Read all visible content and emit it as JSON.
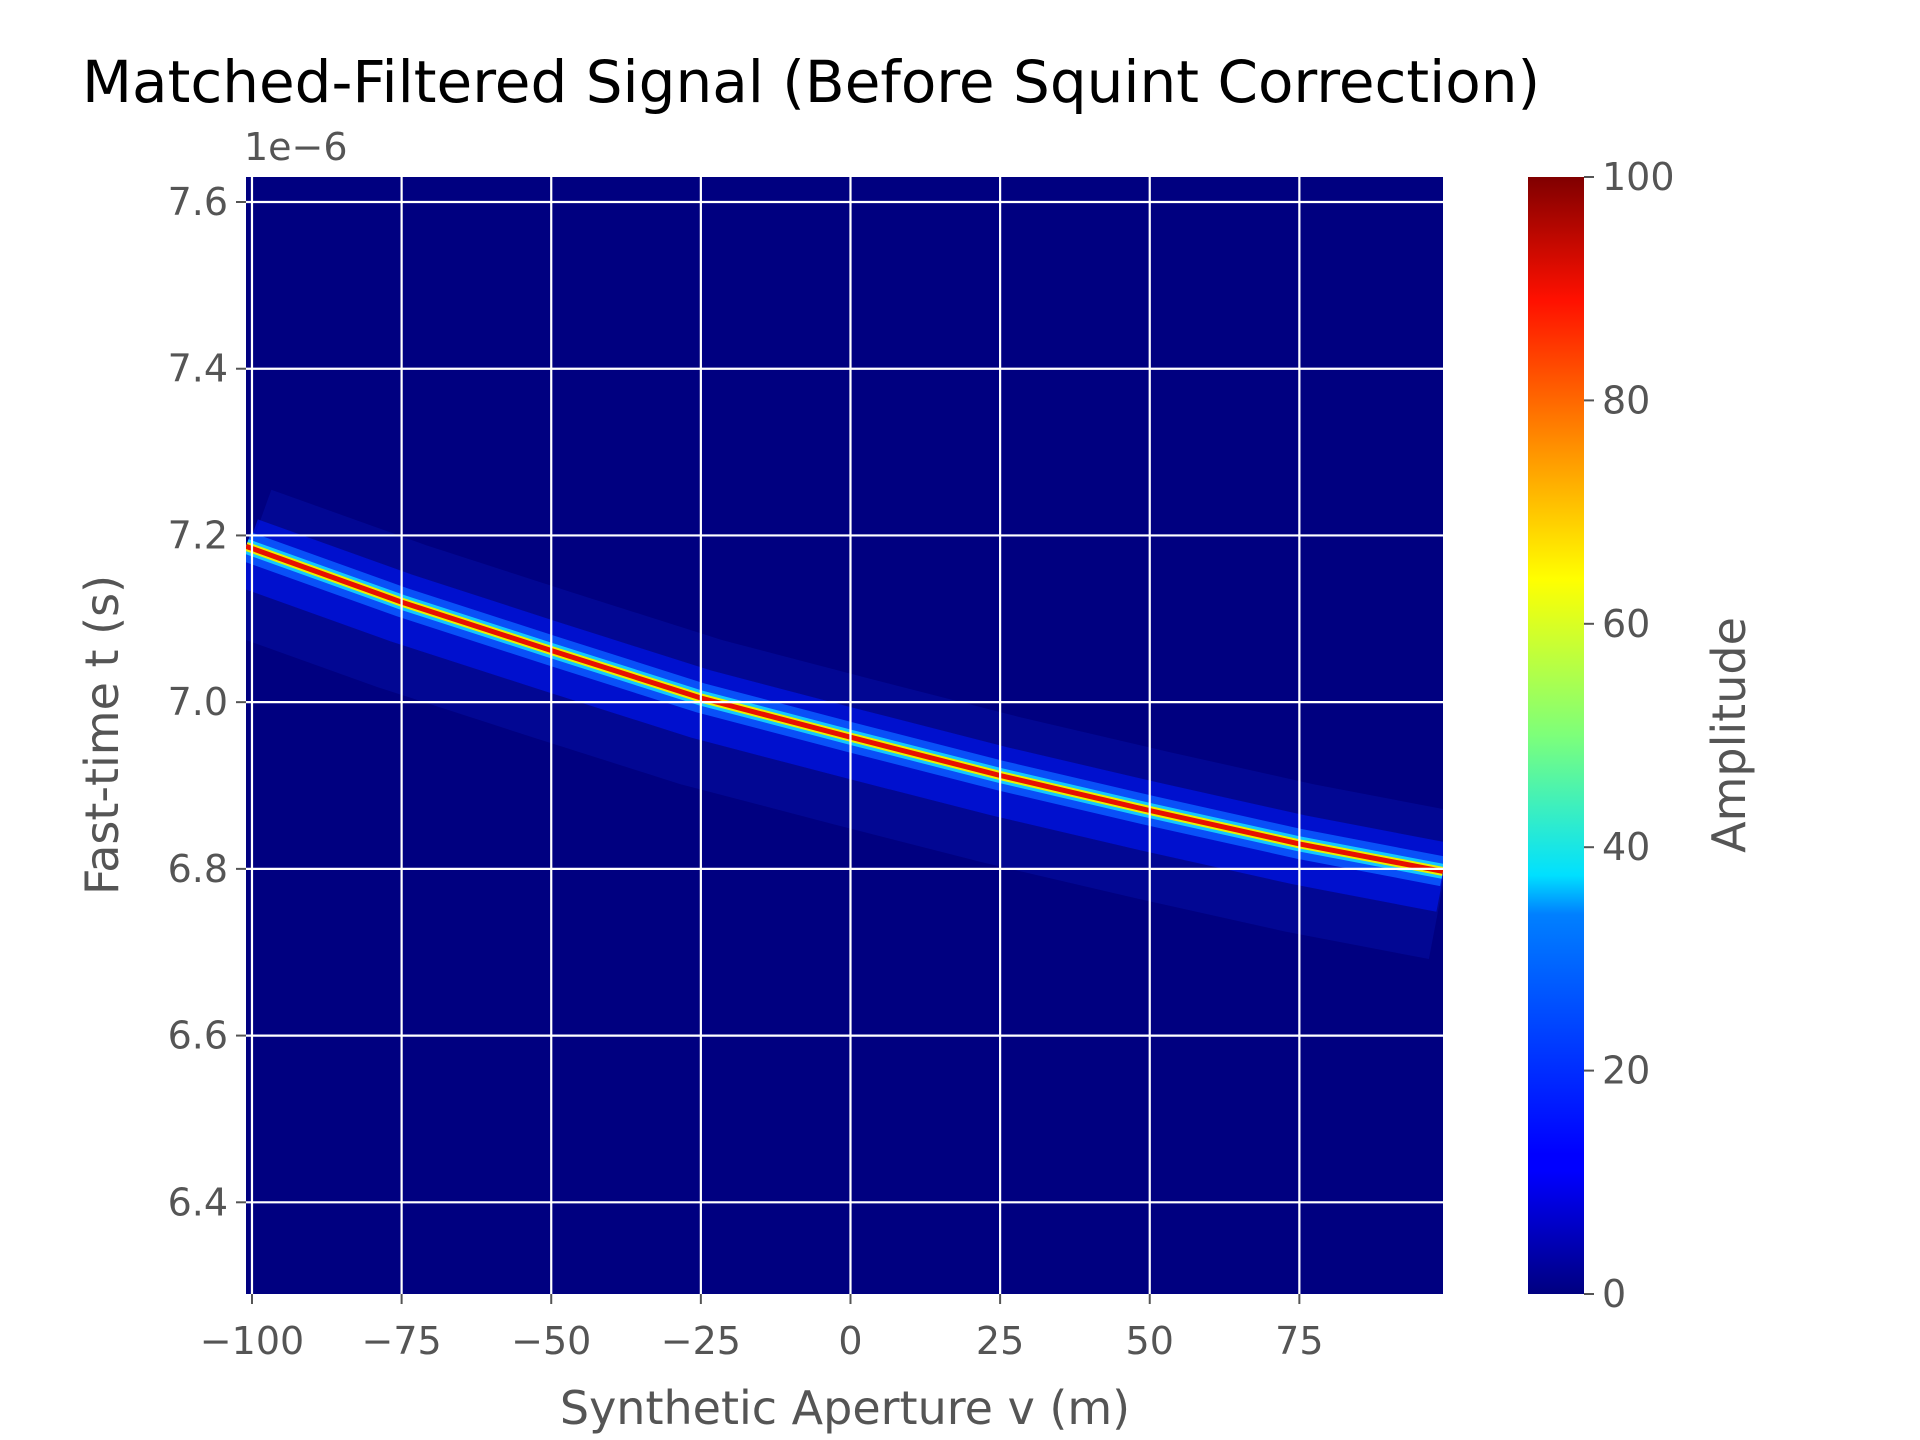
{
  "chart_data": {
    "type": "heatmap",
    "title": "Matched-Filtered Signal (Before Squint Correction)",
    "xlabel": "Synthetic Aperture v (m)",
    "ylabel": "Fast-time t (s)",
    "y_offset_label": "1e−6",
    "y_multiplier": 1e-06,
    "xlim": [
      -101,
      99
    ],
    "ylim": [
      6.29,
      7.63
    ],
    "x_ticks": [
      -100,
      -75,
      -50,
      -25,
      0,
      25,
      50,
      75
    ],
    "x_tick_labels": [
      "−100",
      "−75",
      "−50",
      "−25",
      "0",
      "25",
      "50",
      "75"
    ],
    "y_ticks": [
      6.4,
      6.6,
      6.8,
      7.0,
      7.2,
      7.4,
      7.6
    ],
    "y_tick_labels": [
      "6.4",
      "6.6",
      "6.8",
      "7.0",
      "7.2",
      "7.4",
      "7.6"
    ],
    "grid": true,
    "colormap": "jet",
    "colorbar": {
      "label": "Amplitude",
      "range": [
        0,
        100
      ],
      "ticks": [
        0,
        20,
        40,
        60,
        80,
        100
      ],
      "tick_labels": [
        "0",
        "20",
        "40",
        "60",
        "80",
        "100"
      ]
    },
    "ridge": {
      "peak_amplitude": 100,
      "v": [
        -101,
        -75,
        -50,
        -25,
        0,
        25,
        50,
        75,
        99
      ],
      "t": [
        7.187,
        7.12,
        7.062,
        7.005,
        6.958,
        6.912,
        6.87,
        6.83,
        6.797
      ]
    },
    "background_amplitude": 0
  }
}
